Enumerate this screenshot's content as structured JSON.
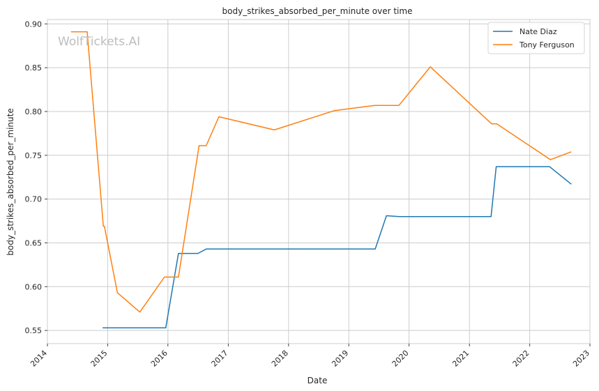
{
  "watermark": "WolfTickets.AI",
  "chart_data": {
    "type": "line",
    "title": "body_strikes_absorbed_per_minute over time",
    "xlabel": "Date",
    "ylabel": "body_strikes_absorbed_per_minute",
    "x_axis_type": "date",
    "xlim": [
      "2014-01-01",
      "2023-01-01"
    ],
    "ylim": [
      0.535,
      0.905
    ],
    "x_ticks": [
      "2014",
      "2015",
      "2016",
      "2017",
      "2018",
      "2019",
      "2020",
      "2021",
      "2022",
      "2023"
    ],
    "y_ticks": [
      "0.55",
      "0.60",
      "0.65",
      "0.70",
      "0.75",
      "0.80",
      "0.85",
      "0.90"
    ],
    "grid": true,
    "legend_position": "top-right",
    "series": [
      {
        "name": "Nate Diaz",
        "color": "#1f77b4",
        "points": [
          [
            "2014-12-01",
            0.553
          ],
          [
            "2015-12-19",
            0.553
          ],
          [
            "2016-03-05",
            0.638
          ],
          [
            "2016-07-01",
            0.638
          ],
          [
            "2016-08-20",
            0.643
          ],
          [
            "2019-06-10",
            0.643
          ],
          [
            "2019-08-17",
            0.681
          ],
          [
            "2019-11-02",
            0.68
          ],
          [
            "2021-05-12",
            0.68
          ],
          [
            "2021-06-12",
            0.737
          ],
          [
            "2022-05-01",
            0.737
          ],
          [
            "2022-09-10",
            0.717
          ]
        ]
      },
      {
        "name": "Tony Ferguson",
        "color": "#ff7f0e",
        "points": [
          [
            "2014-05-24",
            0.891
          ],
          [
            "2014-08-30",
            0.891
          ],
          [
            "2014-12-06",
            0.669
          ],
          [
            "2014-12-12",
            0.669
          ],
          [
            "2015-03-01",
            0.593
          ],
          [
            "2015-07-15",
            0.571
          ],
          [
            "2015-12-11",
            0.611
          ],
          [
            "2016-03-05",
            0.611
          ],
          [
            "2016-07-08",
            0.761
          ],
          [
            "2016-08-20",
            0.761
          ],
          [
            "2016-11-05",
            0.794
          ],
          [
            "2017-10-07",
            0.779
          ],
          [
            "2018-10-06",
            0.801
          ],
          [
            "2019-06-08",
            0.807
          ],
          [
            "2019-11-01",
            0.807
          ],
          [
            "2020-05-09",
            0.851
          ],
          [
            "2021-05-15",
            0.786
          ],
          [
            "2021-06-15",
            0.786
          ],
          [
            "2022-05-07",
            0.745
          ],
          [
            "2022-09-10",
            0.754
          ]
        ]
      }
    ]
  }
}
